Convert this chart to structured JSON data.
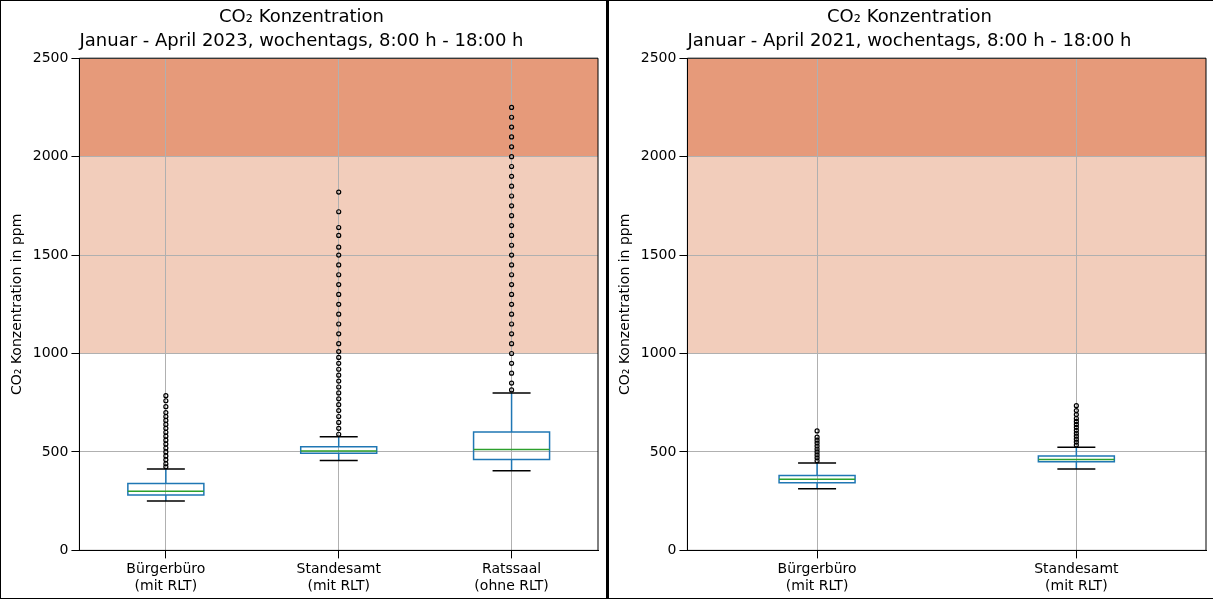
{
  "chart_data": [
    {
      "type": "box",
      "title": "CO₂ Konzentration",
      "subtitle": "Januar - April 2023, wochentags, 8:00 h - 18:00 h",
      "ylabel": "CO₂ Konzentration in ppm",
      "categories": [
        "Bürgerbüro\n(mit RLT)",
        "Standesamt\n(mit RLT)",
        "Ratssaal\n(ohne RLT)"
      ],
      "boxes": [
        {
          "low": 251,
          "q1": 281,
          "median": 300,
          "q3": 340,
          "high": 414,
          "outliers": [
            425,
            440,
            460,
            480,
            500,
            520,
            540,
            560,
            580,
            600,
            620,
            640,
            660,
            680,
            700,
            730,
            760,
            786
          ]
        },
        {
          "low": 456,
          "q1": 493,
          "median": 505,
          "q3": 526,
          "high": 577,
          "outliers": [
            590,
            620,
            650,
            680,
            710,
            740,
            770,
            800,
            830,
            860,
            890,
            920,
            950,
            980,
            1010,
            1050,
            1100,
            1150,
            1200,
            1250,
            1300,
            1350,
            1400,
            1450,
            1500,
            1540,
            1600,
            1640,
            1720,
            1820
          ]
        },
        {
          "low": 405,
          "q1": 462,
          "median": 512,
          "q3": 602,
          "high": 800,
          "outliers": [
            815,
            850,
            900,
            950,
            1000,
            1050,
            1100,
            1150,
            1200,
            1250,
            1300,
            1350,
            1400,
            1450,
            1500,
            1550,
            1600,
            1650,
            1700,
            1750,
            1800,
            1850,
            1900,
            1950,
            2000,
            2050,
            2100,
            2150,
            2200,
            2250
          ]
        }
      ],
      "ylim": [
        0,
        2500
      ],
      "yticks": [
        0,
        500,
        1000,
        1500,
        2000,
        2500
      ],
      "grid": true,
      "legend": false,
      "bands": [
        {
          "axis": "y",
          "from": 1000,
          "to": 2000,
          "color": "#f2cdbb"
        },
        {
          "axis": "y",
          "from": 2000,
          "to": 2500,
          "color": "#e69a7a"
        }
      ]
    },
    {
      "type": "box",
      "title": "CO₂ Konzentration",
      "subtitle": "Januar - April 2021, wochentags, 8:00 h - 18:00 h",
      "ylabel": "CO₂ Konzentration in ppm",
      "categories": [
        "Bürgerbüro\n(mit RLT)",
        "Standesamt\n(mit RLT)"
      ],
      "boxes": [
        {
          "low": 313,
          "q1": 344,
          "median": 361,
          "q3": 380,
          "high": 444,
          "outliers": [
            455,
            470,
            485,
            500,
            515,
            530,
            545,
            560,
            575,
            607
          ]
        },
        {
          "low": 413,
          "q1": 450,
          "median": 462,
          "q3": 480,
          "high": 524,
          "outliers": [
            535,
            550,
            565,
            580,
            595,
            610,
            625,
            640,
            655,
            670,
            690,
            710,
            735
          ]
        }
      ],
      "ylim": [
        0,
        2500
      ],
      "yticks": [
        0,
        500,
        1000,
        1500,
        2000,
        2500
      ],
      "grid": true,
      "legend": false,
      "bands": [
        {
          "axis": "y",
          "from": 1000,
          "to": 2000,
          "color": "#f2cdbb"
        },
        {
          "axis": "y",
          "from": 2000,
          "to": 2500,
          "color": "#e69a7a"
        }
      ]
    }
  ]
}
